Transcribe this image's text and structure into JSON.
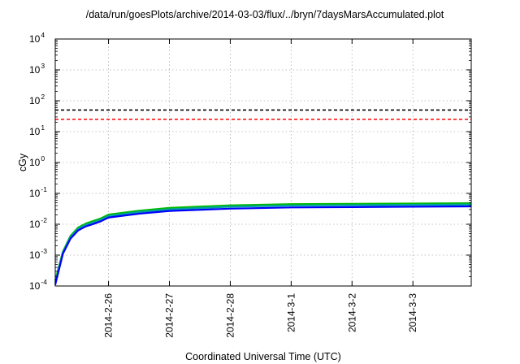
{
  "chart_data": {
    "type": "line",
    "title": "/data/run/goesPlots/archive/2014-03-03/flux/../bryn/7daysMarsAccumulated.plot",
    "xlabel": "Coordinated Universal Time (UTC)",
    "ylabel": "cGy",
    "yscale": "log",
    "ylim": [
      0.0001,
      10000
    ],
    "y_ticks": [
      {
        "value": 0.0001,
        "base": "10",
        "exp": "-4"
      },
      {
        "value": 0.001,
        "base": "10",
        "exp": "-3"
      },
      {
        "value": 0.01,
        "base": "10",
        "exp": "-2"
      },
      {
        "value": 0.1,
        "base": "10",
        "exp": "-1"
      },
      {
        "value": 1,
        "base": "10",
        "exp": "0"
      },
      {
        "value": 10,
        "base": "10",
        "exp": "1"
      },
      {
        "value": 100,
        "base": "10",
        "exp": "2"
      },
      {
        "value": 1000,
        "base": "10",
        "exp": "3"
      },
      {
        "value": 10000,
        "base": "10",
        "exp": "4"
      }
    ],
    "xlim": [
      "2014-02-25 03:00",
      "2014-03-03 23:00"
    ],
    "x_ticks": [
      {
        "value": "2014-02-26",
        "label": "2014-2-26"
      },
      {
        "value": "2014-02-27",
        "label": "2014-2-27"
      },
      {
        "value": "2014-02-28",
        "label": "2014-2-28"
      },
      {
        "value": "2014-03-01",
        "label": "2014-3-1"
      },
      {
        "value": "2014-03-02",
        "label": "2014-3-2"
      },
      {
        "value": "2014-03-03",
        "label": "2014-3-3"
      }
    ],
    "grid": true,
    "legend": "none",
    "reference_lines": [
      {
        "y": 50,
        "color": "#000000",
        "style": "dashed"
      },
      {
        "y": 25,
        "color": "#ff0000",
        "style": "dashed"
      }
    ],
    "series": [
      {
        "color": "#00bb00",
        "x": [
          "2014-02-25 03:00",
          "2014-02-25 06:00",
          "2014-02-25 09:00",
          "2014-02-25 12:00",
          "2014-02-25 15:00",
          "2014-02-25 18:00",
          "2014-02-25 21:00",
          "2014-02-26 00:00",
          "2014-02-26 12:00",
          "2014-02-27 00:00",
          "2014-02-28 00:00",
          "2014-03-01 00:00",
          "2014-03-02 00:00",
          "2014-03-03 00:00",
          "2014-03-03 23:00"
        ],
        "y": [
          0.00015,
          0.0013,
          0.0042,
          0.0078,
          0.0105,
          0.0128,
          0.0155,
          0.0205,
          0.0275,
          0.034,
          0.041,
          0.045,
          0.046,
          0.047,
          0.048
        ]
      },
      {
        "color": "#00a0a0",
        "x": [
          "2014-02-25 03:00",
          "2014-02-25 06:00",
          "2014-02-25 09:00",
          "2014-02-25 12:00",
          "2014-02-25 15:00",
          "2014-02-25 18:00",
          "2014-02-25 21:00",
          "2014-02-26 00:00",
          "2014-02-26 12:00",
          "2014-02-27 00:00",
          "2014-02-28 00:00",
          "2014-03-01 00:00",
          "2014-03-02 00:00",
          "2014-03-03 00:00",
          "2014-03-03 23:00"
        ],
        "y": [
          0.00013,
          0.0012,
          0.0038,
          0.0071,
          0.0095,
          0.0115,
          0.014,
          0.0185,
          0.025,
          0.0305,
          0.037,
          0.0405,
          0.0415,
          0.0425,
          0.0435
        ]
      },
      {
        "color": "#0000ff",
        "x": [
          "2014-02-25 03:00",
          "2014-02-25 06:00",
          "2014-02-25 09:00",
          "2014-02-25 12:00",
          "2014-02-25 15:00",
          "2014-02-25 18:00",
          "2014-02-25 21:00",
          "2014-02-26 00:00",
          "2014-02-26 12:00",
          "2014-02-27 00:00",
          "2014-02-28 00:00",
          "2014-03-01 00:00",
          "2014-03-02 00:00",
          "2014-03-03 00:00",
          "2014-03-03 23:00"
        ],
        "y": [
          0.00011,
          0.0011,
          0.0034,
          0.0063,
          0.0085,
          0.0102,
          0.0125,
          0.0165,
          0.022,
          0.027,
          0.032,
          0.035,
          0.036,
          0.037,
          0.038
        ]
      }
    ]
  }
}
